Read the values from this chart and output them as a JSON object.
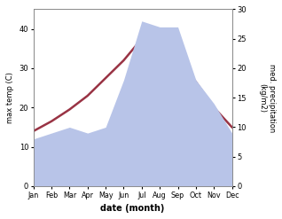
{
  "months": [
    "Jan",
    "Feb",
    "Mar",
    "Apr",
    "May",
    "Jun",
    "Jul",
    "Aug",
    "Sep",
    "Oct",
    "Nov",
    "Dec"
  ],
  "temp": [
    14.0,
    16.5,
    19.5,
    23.0,
    27.5,
    32.0,
    37.5,
    38.0,
    33.0,
    26.5,
    20.0,
    15.0
  ],
  "precip": [
    8.0,
    9.0,
    10.0,
    9.0,
    10.0,
    18.0,
    28.0,
    27.0,
    27.0,
    18.0,
    14.0,
    9.0
  ],
  "temp_color": "#993344",
  "precip_fill_color": "#b8c4e8",
  "ylabel_left": "max temp (C)",
  "ylabel_right": "med. precipitation\n(kg/m2)",
  "xlabel": "date (month)",
  "ylim_left": [
    0,
    45
  ],
  "ylim_right": [
    0,
    30
  ],
  "yticks_left": [
    0,
    10,
    20,
    30,
    40
  ],
  "yticks_right": [
    0,
    5,
    10,
    15,
    20,
    25,
    30
  ],
  "bg_color": "#ffffff",
  "linewidth": 1.8
}
